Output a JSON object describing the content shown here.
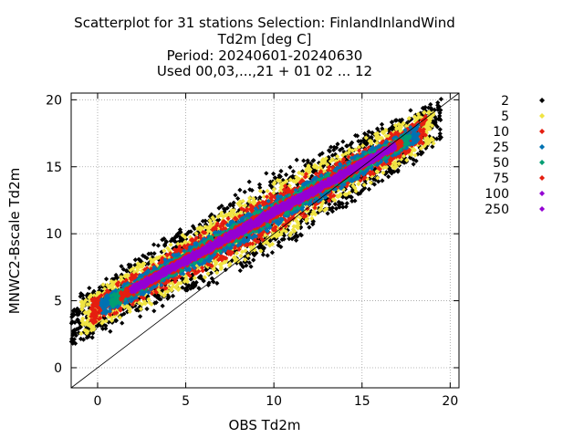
{
  "chart_data": {
    "type": "scatter",
    "title": [
      "Scatterplot for   31 stations Selection: FinlandInlandWind",
      "Td2m [deg C]",
      "Period: 20240601-20240630",
      "Used 00,03,...,21 + 01 02 ... 12"
    ],
    "xlabel": "OBS Td2m",
    "ylabel": "MNWC2-Bscale Td2m",
    "xlim": [
      -1.5,
      20.5
    ],
    "ylim": [
      -1.5,
      20.5
    ],
    "x_ticks": [
      0,
      5,
      10,
      15,
      20
    ],
    "y_ticks": [
      0,
      5,
      10,
      15,
      20
    ],
    "grid": true,
    "reference_line": "y = x",
    "legend_position": "right",
    "density_bins": [
      {
        "label": "2",
        "color": "#000000",
        "spread": 3.3
      },
      {
        "label": "5",
        "color": "#f0e442",
        "spread": 2.7
      },
      {
        "label": "10",
        "color": "#e51e10",
        "spread": 2.0
      },
      {
        "label": "25",
        "color": "#0072b2",
        "spread": 1.5
      },
      {
        "label": "50",
        "color": "#009e73",
        "spread": 1.05
      },
      {
        "label": "75",
        "color": "#e51e10",
        "spread": 0.8
      },
      {
        "label": "100",
        "color": "#9400d3",
        "spread": 0.55
      },
      {
        "label": "250",
        "color": "#9400d3",
        "spread": 0.3
      }
    ],
    "x_range_of_points": [
      -1.5,
      19.5
    ]
  }
}
